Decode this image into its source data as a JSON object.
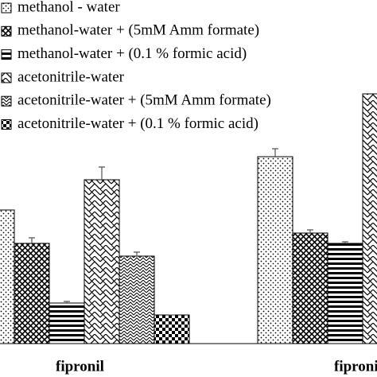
{
  "chart_data": {
    "type": "bar",
    "categories": [
      "fipronil",
      "fipronil su"
    ],
    "ylim": [
      0,
      320
    ],
    "series": [
      {
        "name": "methanol - water",
        "pattern": "dots",
        "values": [
          168,
          235
        ],
        "errors": [
          null,
          10
        ]
      },
      {
        "name": "methanol-water + (5mM Amm formate)",
        "pattern": "crosshatch",
        "values": [
          126,
          139
        ],
        "errors": [
          7,
          4
        ]
      },
      {
        "name": "methanol-water + (0.1 % formic acid)",
        "pattern": "hstripes",
        "values": [
          51,
          126
        ],
        "errors": [
          2,
          2
        ]
      },
      {
        "name": "acetonitrile-water",
        "pattern": "zigzag",
        "values": [
          206,
          314
        ],
        "errors": [
          16,
          null
        ]
      },
      {
        "name": "acetonitrile-water + (5mM Amm formate)",
        "pattern": "brick",
        "values": [
          110,
          null
        ],
        "errors": [
          5,
          null
        ]
      },
      {
        "name": "acetonitrile-water + (0.1 % formic acid)",
        "pattern": "checker",
        "values": [
          36,
          null
        ],
        "errors": [
          0,
          null
        ]
      }
    ]
  }
}
